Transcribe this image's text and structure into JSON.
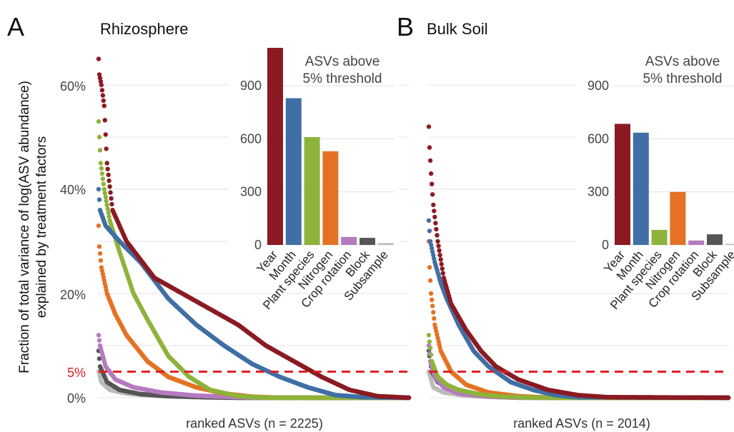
{
  "figure": {
    "ylabel_lines": [
      "Fraction of total variance of log(ASV abundance)",
      "explained by treatment factors"
    ],
    "y_ticks": [
      "0%",
      "5%",
      "20%",
      "40%",
      "60%"
    ],
    "threshold_label": "5%",
    "inset_title_lines": [
      "ASVs above",
      "5% threshold"
    ],
    "colors": {
      "Year": "#8b1a22",
      "Month": "#3f6fa5",
      "Plant species": "#8db33a",
      "Nitrogen": "#e57224",
      "Crop rotation": "#b57ac0",
      "Block": "#555555",
      "Subsample": "#bbbbbb",
      "threshold": "#e21f26"
    }
  },
  "chart_data": [
    {
      "type": "scatter",
      "panel_letter": "A",
      "title": "Rhizosphere",
      "xlabel": "ranked ASVs (n = 2225)",
      "n": 2225,
      "ylim": [
        0,
        0.68
      ],
      "threshold": 0.05,
      "series": [
        {
          "name": "Year",
          "points": [
            [
              0,
              0.65
            ],
            [
              5,
              0.62
            ],
            [
              20,
              0.6
            ],
            [
              40,
              0.56
            ],
            [
              60,
              0.45
            ],
            [
              100,
              0.36
            ],
            [
              200,
              0.3
            ],
            [
              400,
              0.23
            ],
            [
              600,
              0.2
            ],
            [
              800,
              0.17
            ],
            [
              1000,
              0.14
            ],
            [
              1200,
              0.1
            ],
            [
              1400,
              0.07
            ],
            [
              1600,
              0.04
            ],
            [
              1800,
              0.015
            ],
            [
              2000,
              0.003
            ],
            [
              2225,
              0
            ]
          ]
        },
        {
          "name": "Month",
          "points": [
            [
              0,
              0.4
            ],
            [
              10,
              0.36
            ],
            [
              50,
              0.33
            ],
            [
              150,
              0.3
            ],
            [
              300,
              0.26
            ],
            [
              500,
              0.19
            ],
            [
              700,
              0.14
            ],
            [
              900,
              0.1
            ],
            [
              1100,
              0.065
            ],
            [
              1300,
              0.04
            ],
            [
              1500,
              0.02
            ],
            [
              1700,
              0.005
            ],
            [
              1900,
              0.001
            ],
            [
              2225,
              0
            ]
          ]
        },
        {
          "name": "Plant species",
          "points": [
            [
              0,
              0.53
            ],
            [
              5,
              0.5
            ],
            [
              15,
              0.45
            ],
            [
              40,
              0.4
            ],
            [
              80,
              0.34
            ],
            [
              150,
              0.28
            ],
            [
              250,
              0.2
            ],
            [
              350,
              0.15
            ],
            [
              500,
              0.08
            ],
            [
              650,
              0.04
            ],
            [
              800,
              0.015
            ],
            [
              1000,
              0.003
            ],
            [
              1200,
              0
            ],
            [
              2225,
              0
            ]
          ]
        },
        {
          "name": "Nitrogen",
          "points": [
            [
              0,
              0.33
            ],
            [
              5,
              0.29
            ],
            [
              20,
              0.25
            ],
            [
              60,
              0.2
            ],
            [
              120,
              0.16
            ],
            [
              200,
              0.12
            ],
            [
              350,
              0.07
            ],
            [
              500,
              0.04
            ],
            [
              700,
              0.02
            ],
            [
              900,
              0.008
            ],
            [
              1100,
              0.002
            ],
            [
              1300,
              0
            ],
            [
              2225,
              0
            ]
          ]
        },
        {
          "name": "Crop rotation",
          "points": [
            [
              0,
              0.12
            ],
            [
              10,
              0.1
            ],
            [
              50,
              0.06
            ],
            [
              120,
              0.035
            ],
            [
              250,
              0.02
            ],
            [
              450,
              0.01
            ],
            [
              700,
              0.004
            ],
            [
              1000,
              0.001
            ],
            [
              1200,
              0
            ],
            [
              2225,
              0
            ]
          ]
        },
        {
          "name": "Block",
          "points": [
            [
              0,
              0.09
            ],
            [
              10,
              0.06
            ],
            [
              60,
              0.03
            ],
            [
              150,
              0.015
            ],
            [
              300,
              0.007
            ],
            [
              500,
              0.003
            ],
            [
              800,
              0.001
            ],
            [
              1000,
              0
            ],
            [
              2225,
              0
            ]
          ]
        },
        {
          "name": "Subsample",
          "points": [
            [
              0,
              0.05
            ],
            [
              20,
              0.03
            ],
            [
              80,
              0.015
            ],
            [
              200,
              0.008
            ],
            [
              400,
              0.004
            ],
            [
              700,
              0.001
            ],
            [
              900,
              0
            ],
            [
              2225,
              0
            ]
          ]
        }
      ],
      "inset": {
        "type": "bar",
        "categories": [
          "Year",
          "Month",
          "Plant species",
          "Nitrogen",
          "Crop rotation",
          "Block",
          "Subsample"
        ],
        "values": [
          1115,
          830,
          610,
          530,
          45,
          40,
          10
        ],
        "y_ticks": [
          "0",
          "300",
          "600",
          "900"
        ],
        "ylim": [
          0,
          1115
        ]
      }
    },
    {
      "type": "scatter",
      "panel_letter": "B",
      "title": "Bulk Soil",
      "xlabel": "ranked ASVs (n = 2014)",
      "n": 2014,
      "ylim": [
        0,
        0.68
      ],
      "threshold": 0.05,
      "series": [
        {
          "name": "Year",
          "points": [
            [
              0,
              0.52
            ],
            [
              5,
              0.48
            ],
            [
              15,
              0.43
            ],
            [
              30,
              0.37
            ],
            [
              60,
              0.3
            ],
            [
              100,
              0.23
            ],
            [
              150,
              0.18
            ],
            [
              250,
              0.13
            ],
            [
              350,
              0.09
            ],
            [
              450,
              0.06
            ],
            [
              600,
              0.035
            ],
            [
              800,
              0.015
            ],
            [
              1000,
              0.005
            ],
            [
              1200,
              0.001
            ],
            [
              2014,
              0
            ]
          ]
        },
        {
          "name": "Month",
          "points": [
            [
              0,
              0.34
            ],
            [
              10,
              0.3
            ],
            [
              40,
              0.26
            ],
            [
              80,
              0.22
            ],
            [
              120,
              0.19
            ],
            [
              200,
              0.14
            ],
            [
              300,
              0.09
            ],
            [
              400,
              0.06
            ],
            [
              550,
              0.03
            ],
            [
              700,
              0.015
            ],
            [
              850,
              0.005
            ],
            [
              1000,
              0.001
            ],
            [
              2014,
              0
            ]
          ]
        },
        {
          "name": "Plant species",
          "points": [
            [
              0,
              0.12
            ],
            [
              20,
              0.07
            ],
            [
              60,
              0.04
            ],
            [
              120,
              0.025
            ],
            [
              200,
              0.015
            ],
            [
              350,
              0.006
            ],
            [
              500,
              0.002
            ],
            [
              700,
              0
            ],
            [
              2014,
              0
            ]
          ]
        },
        {
          "name": "Nitrogen",
          "points": [
            [
              0,
              0.3
            ],
            [
              5,
              0.25
            ],
            [
              15,
              0.2
            ],
            [
              40,
              0.14
            ],
            [
              80,
              0.09
            ],
            [
              150,
              0.05
            ],
            [
              250,
              0.025
            ],
            [
              400,
              0.01
            ],
            [
              600,
              0.003
            ],
            [
              800,
              0
            ],
            [
              2014,
              0
            ]
          ]
        },
        {
          "name": "Crop rotation",
          "points": [
            [
              0,
              0.1
            ],
            [
              10,
              0.07
            ],
            [
              40,
              0.04
            ],
            [
              100,
              0.02
            ],
            [
              200,
              0.008
            ],
            [
              400,
              0.002
            ],
            [
              600,
              0
            ],
            [
              2014,
              0
            ]
          ]
        },
        {
          "name": "Block",
          "points": [
            [
              0,
              0.09
            ],
            [
              20,
              0.05
            ],
            [
              60,
              0.03
            ],
            [
              150,
              0.015
            ],
            [
              300,
              0.005
            ],
            [
              500,
              0.001
            ],
            [
              2014,
              0
            ]
          ]
        },
        {
          "name": "Subsample",
          "points": [
            [
              0,
              0.05
            ],
            [
              30,
              0.02
            ],
            [
              100,
              0.01
            ],
            [
              250,
              0.004
            ],
            [
              500,
              0.001
            ],
            [
              700,
              0
            ],
            [
              2014,
              0
            ]
          ]
        }
      ],
      "inset": {
        "type": "bar",
        "categories": [
          "Year",
          "Month",
          "Plant species",
          "Nitrogen",
          "Crop rotation",
          "Block",
          "Subsample"
        ],
        "values": [
          685,
          635,
          85,
          300,
          25,
          60,
          2
        ],
        "y_ticks": [
          "0",
          "300",
          "600",
          "900"
        ],
        "ylim": [
          0,
          1115
        ]
      }
    }
  ]
}
